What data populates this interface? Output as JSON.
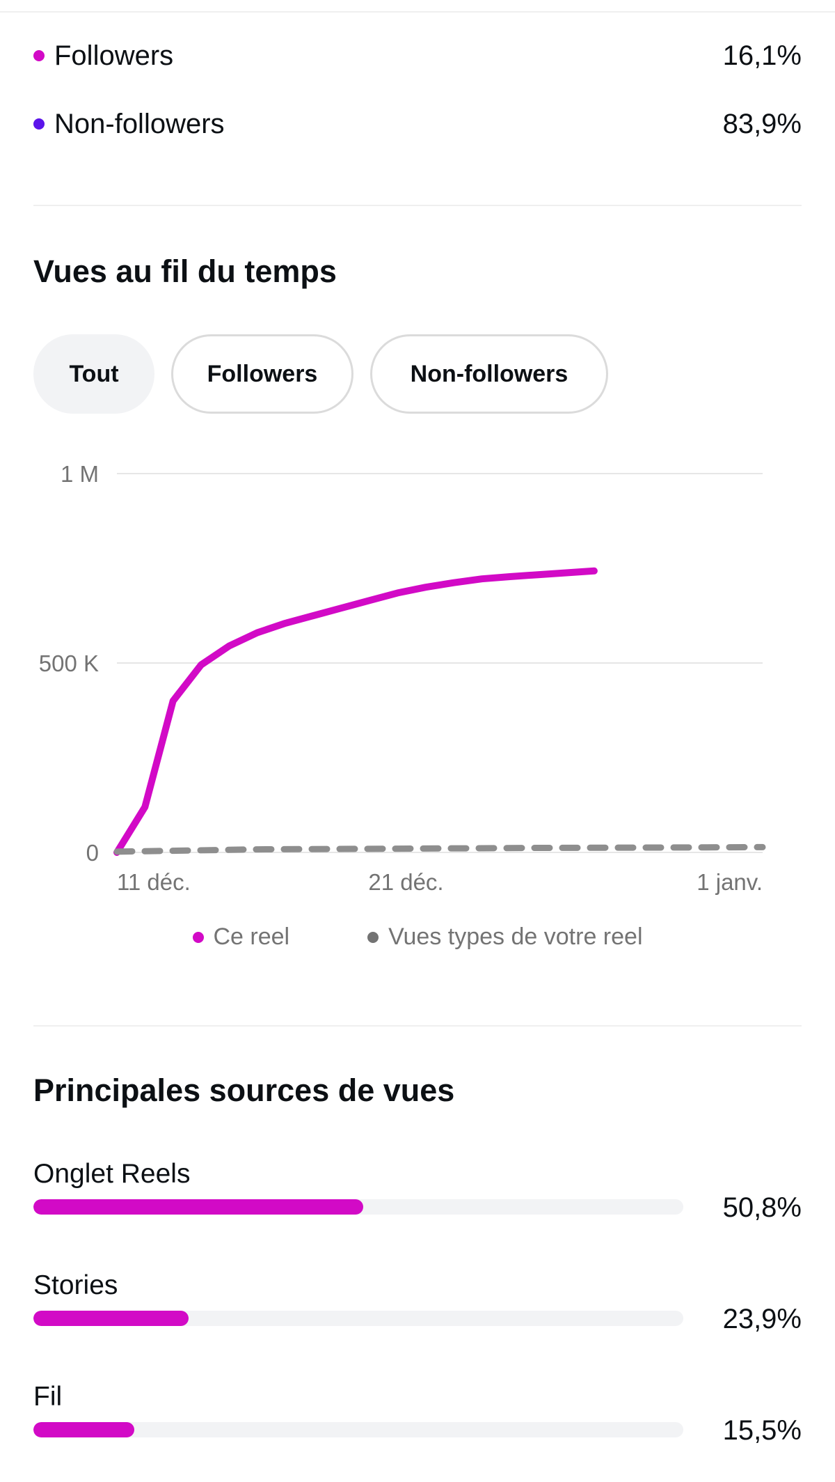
{
  "audience": {
    "items": [
      {
        "label": "Followers",
        "value": "16,1%",
        "color": "#d20ac6"
      },
      {
        "label": "Non-followers",
        "value": "83,9%",
        "color": "#5b14ea"
      }
    ]
  },
  "views_over_time": {
    "title": "Vues au fil du temps",
    "filters": [
      {
        "label": "Tout",
        "selected": true
      },
      {
        "label": "Followers",
        "selected": false
      },
      {
        "label": "Non-followers",
        "selected": false
      }
    ]
  },
  "chart_data": {
    "type": "line",
    "x_tick_labels": [
      "11 déc.",
      "21 déc.",
      "1 janv."
    ],
    "y_tick_labels": [
      "1 M",
      "500 K",
      "0"
    ],
    "y_ticks": [
      1000000,
      500000,
      0
    ],
    "ylim": [
      0,
      1000000
    ],
    "xlim": [
      0,
      23
    ],
    "x_ticks": [
      0,
      10,
      21
    ],
    "grid": true,
    "legend_position": "bottom-center",
    "series": [
      {
        "name": "Ce reel",
        "color": "#d20ac6",
        "style": "solid",
        "x": [
          0,
          1,
          2,
          3,
          4,
          5,
          6,
          7,
          8,
          9,
          10,
          11,
          12,
          13,
          14,
          15,
          16,
          17
        ],
        "values": [
          0,
          120000,
          400000,
          495000,
          545000,
          580000,
          605000,
          625000,
          645000,
          665000,
          685000,
          700000,
          712000,
          722000,
          728000,
          733000,
          738000,
          743000
        ]
      },
      {
        "name": "Vues types de votre reel",
        "color": "#8e8e8e",
        "style": "dashed",
        "x": [
          0,
          5,
          10,
          15,
          20,
          23
        ],
        "values": [
          2000,
          8000,
          10000,
          12000,
          13000,
          14000
        ]
      }
    ]
  },
  "chart_legend": [
    {
      "label": "Ce reel",
      "color": "#d20ac6"
    },
    {
      "label": "Vues types de votre reel",
      "color": "#737373"
    }
  ],
  "top_sources": {
    "title": "Principales sources de vues",
    "items": [
      {
        "label": "Onglet Reels",
        "value": "50,8%",
        "fraction": 0.508
      },
      {
        "label": "Stories",
        "value": "23,9%",
        "fraction": 0.239
      },
      {
        "label": "Fil",
        "value": "15,5%",
        "fraction": 0.155
      }
    ],
    "bar_color": "#d20ac6"
  }
}
